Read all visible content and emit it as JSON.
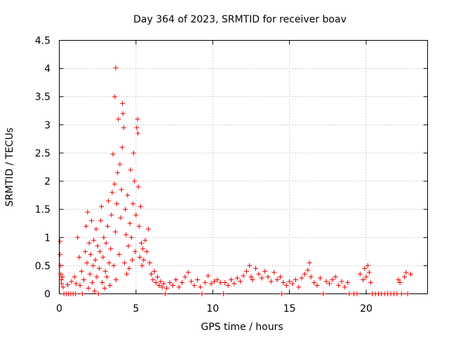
{
  "chart_data": {
    "type": "scatter",
    "title": "Day 364 of 2023, SRMTID for receiver boav",
    "xlabel": "GPS time / hours",
    "ylabel": "SRMTID / TECUs",
    "xlim": [
      0,
      24
    ],
    "ylim": [
      0,
      4.5
    ],
    "grid": true,
    "x_ticks": [
      0,
      5,
      10,
      15,
      20
    ],
    "x_tick_labels": [
      "0",
      "5",
      "10",
      "15",
      "20"
    ],
    "y_ticks": [
      0,
      0.5,
      1,
      1.5,
      2,
      2.5,
      3,
      3.5,
      4,
      4.5
    ],
    "y_tick_labels": [
      "0",
      "0.5",
      "1",
      "1.5",
      "2",
      "2.5",
      "3",
      "3.5",
      "4",
      "4.5"
    ],
    "marker": "plus",
    "series": [
      {
        "name": "SRMTID",
        "color": "#ee0000",
        "points": [
          [
            0.05,
            0.93
          ],
          [
            0.05,
            0.7
          ],
          [
            0.08,
            0.5
          ],
          [
            0.1,
            0.35
          ],
          [
            0.12,
            0.25
          ],
          [
            0.15,
            0.18
          ],
          [
            0.2,
            0.3
          ],
          [
            0.25,
            0.12
          ],
          [
            0.3,
            0.0
          ],
          [
            0.45,
            0.0
          ],
          [
            0.6,
            0.0
          ],
          [
            0.75,
            0.0
          ],
          [
            0.9,
            0.0
          ],
          [
            1.05,
            0.0
          ],
          [
            0.55,
            0.16
          ],
          [
            0.8,
            0.22
          ],
          [
            1.0,
            0.3
          ],
          [
            1.1,
            0.18
          ],
          [
            1.2,
            1.0
          ],
          [
            1.3,
            0.65
          ],
          [
            1.35,
            0.15
          ],
          [
            1.45,
            0.4
          ],
          [
            1.5,
            0.0
          ],
          [
            1.6,
            0.25
          ],
          [
            1.7,
            0.75
          ],
          [
            1.75,
            1.2
          ],
          [
            1.8,
            0.55
          ],
          [
            1.85,
            1.45
          ],
          [
            1.9,
            0.1
          ],
          [
            1.95,
            0.9
          ],
          [
            2.0,
            0.35
          ],
          [
            2.05,
            0.7
          ],
          [
            2.1,
            1.3
          ],
          [
            2.15,
            0.2
          ],
          [
            2.2,
            0.5
          ],
          [
            2.25,
            0.95
          ],
          [
            2.3,
            0.05
          ],
          [
            2.35,
            0.6
          ],
          [
            2.4,
            1.15
          ],
          [
            2.45,
            0.3
          ],
          [
            2.5,
            0.85
          ],
          [
            2.55,
            0.0
          ],
          [
            2.6,
            0.45
          ],
          [
            2.65,
            0.75
          ],
          [
            2.7,
            1.3
          ],
          [
            2.75,
            1.55
          ],
          [
            2.8,
            0.2
          ],
          [
            2.85,
            0.65
          ],
          [
            2.9,
            1.0
          ],
          [
            2.95,
            0.1
          ],
          [
            3.0,
            0.4
          ],
          [
            3.05,
            0.9
          ],
          [
            3.1,
            0.3
          ],
          [
            3.15,
            1.2
          ],
          [
            3.2,
            1.65
          ],
          [
            3.25,
            0.55
          ],
          [
            3.3,
            0.15
          ],
          [
            3.35,
            0.8
          ],
          [
            3.4,
            1.4
          ],
          [
            3.45,
            1.8
          ],
          [
            3.5,
            2.48
          ],
          [
            3.55,
            0.5
          ],
          [
            3.6,
            1.95
          ],
          [
            3.62,
            3.5
          ],
          [
            3.65,
            1.1
          ],
          [
            3.68,
            4.01
          ],
          [
            3.7,
            0.25
          ],
          [
            3.75,
            1.6
          ],
          [
            3.8,
            2.15
          ],
          [
            3.85,
            3.1
          ],
          [
            3.9,
            0.7
          ],
          [
            3.95,
            2.3
          ],
          [
            4.0,
            1.35
          ],
          [
            4.05,
            1.85
          ],
          [
            4.1,
            2.6
          ],
          [
            4.12,
            3.38
          ],
          [
            4.15,
            3.2
          ],
          [
            4.2,
            2.95
          ],
          [
            4.25,
            0.55
          ],
          [
            4.3,
            1.5
          ],
          [
            4.35,
            1.05
          ],
          [
            4.4,
            0.35
          ],
          [
            4.45,
            1.75
          ],
          [
            4.5,
            0.85
          ],
          [
            4.55,
            0.45
          ],
          [
            4.6,
            1.25
          ],
          [
            4.65,
            2.2
          ],
          [
            4.7,
            1.0
          ],
          [
            4.75,
            0.6
          ],
          [
            4.8,
            1.6
          ],
          [
            4.85,
            2.5
          ],
          [
            4.9,
            2.0
          ],
          [
            4.95,
            0.75
          ],
          [
            5.0,
            1.4
          ],
          [
            5.05,
            2.95
          ],
          [
            5.1,
            3.1
          ],
          [
            5.12,
            2.85
          ],
          [
            5.15,
            1.9
          ],
          [
            5.2,
            1.2
          ],
          [
            5.25,
            0.65
          ],
          [
            5.3,
            1.55
          ],
          [
            5.35,
            0.9
          ],
          [
            5.4,
            0.5
          ],
          [
            5.45,
            0.8
          ],
          [
            5.5,
            0.6
          ],
          [
            5.6,
            0.95
          ],
          [
            5.7,
            0.75
          ],
          [
            5.8,
            1.15
          ],
          [
            5.9,
            0.55
          ],
          [
            6.0,
            0.35
          ],
          [
            6.1,
            0.25
          ],
          [
            6.2,
            0.4
          ],
          [
            6.3,
            0.2
          ],
          [
            6.4,
            0.3
          ],
          [
            6.5,
            0.15
          ],
          [
            6.6,
            0.22
          ],
          [
            6.7,
            0.12
          ],
          [
            6.8,
            0.18
          ],
          [
            6.9,
            0.0
          ],
          [
            7.0,
            0.1
          ],
          [
            7.2,
            0.2
          ],
          [
            7.4,
            0.15
          ],
          [
            7.6,
            0.25
          ],
          [
            7.8,
            0.12
          ],
          [
            8.0,
            0.2
          ],
          [
            8.2,
            0.3
          ],
          [
            8.4,
            0.38
          ],
          [
            8.6,
            0.22
          ],
          [
            8.8,
            0.15
          ],
          [
            9.0,
            0.25
          ],
          [
            9.2,
            0.12
          ],
          [
            9.3,
            0.0
          ],
          [
            9.5,
            0.2
          ],
          [
            9.7,
            0.32
          ],
          [
            9.9,
            0.18
          ],
          [
            10.1,
            0.22
          ],
          [
            10.3,
            0.25
          ],
          [
            10.5,
            0.2
          ],
          [
            10.7,
            0.0
          ],
          [
            10.8,
            0.2
          ],
          [
            11.0,
            0.15
          ],
          [
            11.2,
            0.25
          ],
          [
            11.4,
            0.18
          ],
          [
            11.6,
            0.28
          ],
          [
            11.8,
            0.22
          ],
          [
            12.0,
            0.32
          ],
          [
            12.2,
            0.4
          ],
          [
            12.4,
            0.5
          ],
          [
            12.5,
            0.3
          ],
          [
            12.6,
            0.25
          ],
          [
            12.8,
            0.45
          ],
          [
            13.0,
            0.35
          ],
          [
            13.2,
            0.28
          ],
          [
            13.4,
            0.4
          ],
          [
            13.6,
            0.3
          ],
          [
            13.8,
            0.22
          ],
          [
            14.0,
            0.38
          ],
          [
            14.2,
            0.25
          ],
          [
            14.4,
            0.3
          ],
          [
            14.5,
            0.0
          ],
          [
            14.6,
            0.2
          ],
          [
            14.8,
            0.15
          ],
          [
            15.0,
            0.22
          ],
          [
            15.2,
            0.18
          ],
          [
            15.4,
            0.25
          ],
          [
            15.6,
            0.12
          ],
          [
            15.8,
            0.28
          ],
          [
            16.0,
            0.35
          ],
          [
            16.2,
            0.42
          ],
          [
            16.3,
            0.55
          ],
          [
            16.4,
            0.3
          ],
          [
            16.6,
            0.2
          ],
          [
            16.8,
            0.15
          ],
          [
            17.0,
            0.28
          ],
          [
            17.2,
            0.0
          ],
          [
            17.4,
            0.22
          ],
          [
            17.6,
            0.18
          ],
          [
            17.8,
            0.25
          ],
          [
            18.0,
            0.3
          ],
          [
            18.2,
            0.15
          ],
          [
            18.4,
            0.22
          ],
          [
            18.6,
            0.12
          ],
          [
            18.8,
            0.2
          ],
          [
            18.9,
            0.0
          ],
          [
            19.2,
            0.0
          ],
          [
            19.4,
            0.0
          ],
          [
            19.6,
            0.35
          ],
          [
            19.8,
            0.25
          ],
          [
            19.9,
            0.45
          ],
          [
            20.0,
            0.3
          ],
          [
            20.1,
            0.5
          ],
          [
            20.2,
            0.38
          ],
          [
            20.3,
            0.2
          ],
          [
            20.4,
            0.0
          ],
          [
            20.6,
            0.0
          ],
          [
            20.8,
            0.0
          ],
          [
            21.0,
            0.0
          ],
          [
            21.2,
            0.0
          ],
          [
            21.4,
            0.0
          ],
          [
            21.6,
            0.0
          ],
          [
            21.8,
            0.0
          ],
          [
            22.0,
            0.0
          ],
          [
            22.1,
            0.25
          ],
          [
            22.2,
            0.2
          ],
          [
            22.3,
            0.0
          ],
          [
            22.5,
            0.3
          ],
          [
            22.6,
            0.38
          ],
          [
            22.7,
            0.0
          ],
          [
            22.9,
            0.35
          ]
        ]
      }
    ]
  }
}
